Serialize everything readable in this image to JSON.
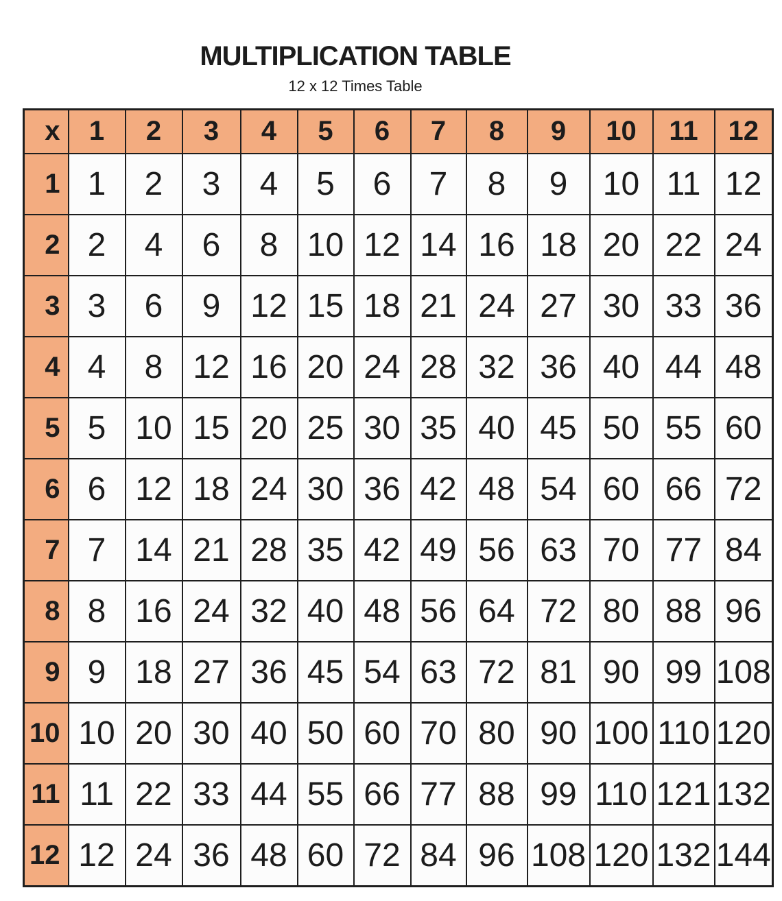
{
  "heading": {
    "title": "MULTIPLICATION TABLE",
    "subtitle": "12 x 12 Times Table"
  },
  "table": {
    "corner_label": "x",
    "column_headers": [
      1,
      2,
      3,
      4,
      5,
      6,
      7,
      8,
      9,
      10,
      11,
      12
    ],
    "rows": [
      {
        "header": 1,
        "cells": [
          1,
          2,
          3,
          4,
          5,
          6,
          7,
          8,
          9,
          10,
          11,
          12
        ]
      },
      {
        "header": 2,
        "cells": [
          2,
          4,
          6,
          8,
          10,
          12,
          14,
          16,
          18,
          20,
          22,
          24
        ]
      },
      {
        "header": 3,
        "cells": [
          3,
          6,
          9,
          12,
          15,
          18,
          21,
          24,
          27,
          30,
          33,
          36
        ]
      },
      {
        "header": 4,
        "cells": [
          4,
          8,
          12,
          16,
          20,
          24,
          28,
          32,
          36,
          40,
          44,
          48
        ]
      },
      {
        "header": 5,
        "cells": [
          5,
          10,
          15,
          20,
          25,
          30,
          35,
          40,
          45,
          50,
          55,
          60
        ]
      },
      {
        "header": 6,
        "cells": [
          6,
          12,
          18,
          24,
          30,
          36,
          42,
          48,
          54,
          60,
          66,
          72
        ]
      },
      {
        "header": 7,
        "cells": [
          7,
          14,
          21,
          28,
          35,
          42,
          49,
          56,
          63,
          70,
          77,
          84
        ]
      },
      {
        "header": 8,
        "cells": [
          8,
          16,
          24,
          32,
          40,
          48,
          56,
          64,
          72,
          80,
          88,
          96
        ]
      },
      {
        "header": 9,
        "cells": [
          9,
          18,
          27,
          36,
          45,
          54,
          63,
          72,
          81,
          90,
          99,
          108
        ]
      },
      {
        "header": 10,
        "cells": [
          10,
          20,
          30,
          40,
          50,
          60,
          70,
          80,
          90,
          100,
          110,
          120
        ]
      },
      {
        "header": 11,
        "cells": [
          11,
          22,
          33,
          44,
          55,
          66,
          77,
          88,
          99,
          110,
          121,
          132
        ]
      },
      {
        "header": 12,
        "cells": [
          12,
          24,
          36,
          48,
          60,
          72,
          84,
          96,
          108,
          120,
          132,
          144
        ]
      }
    ]
  },
  "colors": {
    "header_bg": "#F3AC80",
    "border": "#1E1E1E",
    "cell_bg": "#FCFCFC",
    "text": "#1C1C1C",
    "page_bg": "#FFFFFF"
  }
}
